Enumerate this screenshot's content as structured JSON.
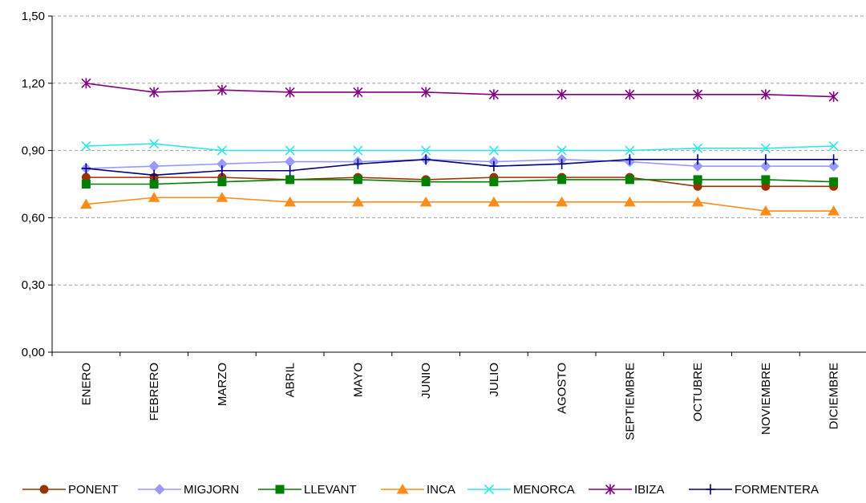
{
  "chart_data": {
    "type": "line",
    "title": "",
    "xlabel": "",
    "ylabel": "",
    "categories": [
      "ENERO",
      "FEBRERO",
      "MARZO",
      "ABRIL",
      "MAYO",
      "JUNIO",
      "JULIO",
      "AGOSTO",
      "SEPTIEMBRE",
      "OCTUBRE",
      "NOVIEMBRE",
      "DICIEMBRE"
    ],
    "ylim": [
      0,
      1.5
    ],
    "yticks": [
      "0,00",
      "0,30",
      "0,60",
      "0,90",
      "1,20",
      "1,50"
    ],
    "ytick_values": [
      0,
      0.3,
      0.6,
      0.9,
      1.2,
      1.5
    ],
    "grid": "horizontal dashed",
    "legend_position": "bottom",
    "series": [
      {
        "name": "PONENT",
        "color": "#993300",
        "marker": "circle",
        "values": [
          0.78,
          0.78,
          0.78,
          0.77,
          0.78,
          0.77,
          0.78,
          0.78,
          0.78,
          0.74,
          0.74,
          0.74
        ]
      },
      {
        "name": "MIGJORN",
        "color": "#9999ff",
        "marker": "diamond",
        "values": [
          0.82,
          0.83,
          0.84,
          0.85,
          0.85,
          0.86,
          0.85,
          0.86,
          0.85,
          0.83,
          0.83,
          0.83
        ]
      },
      {
        "name": "LLEVANT",
        "color": "#008000",
        "marker": "square",
        "values": [
          0.75,
          0.75,
          0.76,
          0.77,
          0.77,
          0.76,
          0.76,
          0.77,
          0.77,
          0.77,
          0.77,
          0.76
        ]
      },
      {
        "name": "INCA",
        "color": "#ff8c1a",
        "marker": "triangle",
        "values": [
          0.66,
          0.69,
          0.69,
          0.67,
          0.67,
          0.67,
          0.67,
          0.67,
          0.67,
          0.67,
          0.63,
          0.63
        ]
      },
      {
        "name": "MENORCA",
        "color": "#33e6e6",
        "marker": "x",
        "values": [
          0.92,
          0.93,
          0.9,
          0.9,
          0.9,
          0.9,
          0.9,
          0.9,
          0.9,
          0.91,
          0.91,
          0.92
        ]
      },
      {
        "name": "IBIZA",
        "color": "#800080",
        "marker": "asterisk",
        "values": [
          1.2,
          1.16,
          1.17,
          1.16,
          1.16,
          1.16,
          1.15,
          1.15,
          1.15,
          1.15,
          1.15,
          1.14
        ]
      },
      {
        "name": "FORMENTERA",
        "color": "#000080",
        "marker": "plus",
        "values": [
          0.82,
          0.79,
          0.81,
          0.81,
          0.84,
          0.86,
          0.83,
          0.84,
          0.86,
          0.86,
          0.86,
          0.86
        ]
      }
    ]
  }
}
